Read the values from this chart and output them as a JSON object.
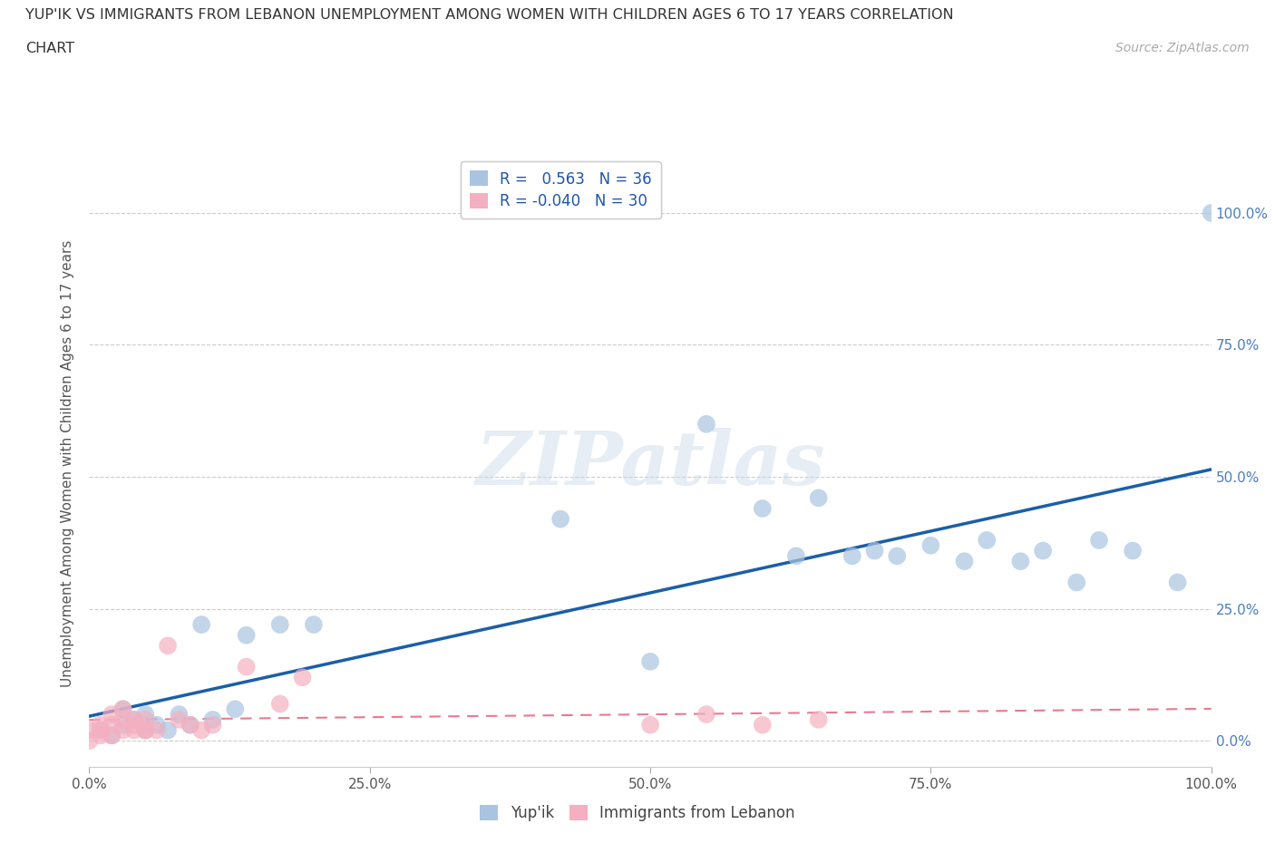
{
  "title_line1": "YUP'IK VS IMMIGRANTS FROM LEBANON UNEMPLOYMENT AMONG WOMEN WITH CHILDREN AGES 6 TO 17 YEARS CORRELATION",
  "title_line2": "CHART",
  "source": "Source: ZipAtlas.com",
  "ylabel": "Unemployment Among Women with Children Ages 6 to 17 years",
  "xticklabels": [
    "0.0%",
    "25.0%",
    "50.0%",
    "75.0%",
    "100.0%"
  ],
  "yticklabels_right": [
    "0.0%",
    "25.0%",
    "50.0%",
    "75.0%",
    "100.0%"
  ],
  "xlim": [
    0,
    1.0
  ],
  "ylim": [
    -0.05,
    1.1
  ],
  "legend_labels": [
    "Yup'ik",
    "Immigrants from Lebanon"
  ],
  "r_yupik": 0.563,
  "n_yupik": 36,
  "r_lebanon": -0.04,
  "n_lebanon": 30,
  "color_yupik": "#a8c4e0",
  "color_lebanon": "#f4b0c0",
  "trendline_yupik_color": "#1a5fa8",
  "trendline_lebanon_color": "#e87a90",
  "background_color": "#ffffff",
  "grid_color": "#cccccc",
  "watermark": "ZIPatlas",
  "yupik_x": [
    0.01,
    0.02,
    0.03,
    0.03,
    0.04,
    0.05,
    0.05,
    0.06,
    0.07,
    0.08,
    0.09,
    0.1,
    0.11,
    0.13,
    0.14,
    0.17,
    0.2,
    0.42,
    0.5,
    0.55,
    0.6,
    0.63,
    0.65,
    0.68,
    0.7,
    0.72,
    0.75,
    0.78,
    0.8,
    0.83,
    0.85,
    0.88,
    0.9,
    0.93,
    0.97,
    1.0
  ],
  "yupik_y": [
    0.02,
    0.01,
    0.03,
    0.06,
    0.04,
    0.05,
    0.02,
    0.03,
    0.02,
    0.05,
    0.03,
    0.22,
    0.04,
    0.06,
    0.2,
    0.22,
    0.22,
    0.42,
    0.15,
    0.6,
    0.44,
    0.35,
    0.46,
    0.35,
    0.36,
    0.35,
    0.37,
    0.34,
    0.38,
    0.34,
    0.36,
    0.3,
    0.38,
    0.36,
    0.3,
    1.0
  ],
  "lebanon_x": [
    0.0,
    0.0,
    0.01,
    0.01,
    0.01,
    0.02,
    0.02,
    0.02,
    0.03,
    0.03,
    0.03,
    0.04,
    0.04,
    0.04,
    0.05,
    0.05,
    0.05,
    0.06,
    0.07,
    0.08,
    0.09,
    0.1,
    0.11,
    0.14,
    0.17,
    0.19,
    0.5,
    0.55,
    0.6,
    0.65
  ],
  "lebanon_y": [
    0.0,
    0.02,
    0.01,
    0.03,
    0.02,
    0.01,
    0.03,
    0.05,
    0.02,
    0.04,
    0.06,
    0.02,
    0.04,
    0.03,
    0.02,
    0.04,
    0.02,
    0.02,
    0.18,
    0.04,
    0.03,
    0.02,
    0.03,
    0.14,
    0.07,
    0.12,
    0.03,
    0.05,
    0.03,
    0.04
  ]
}
